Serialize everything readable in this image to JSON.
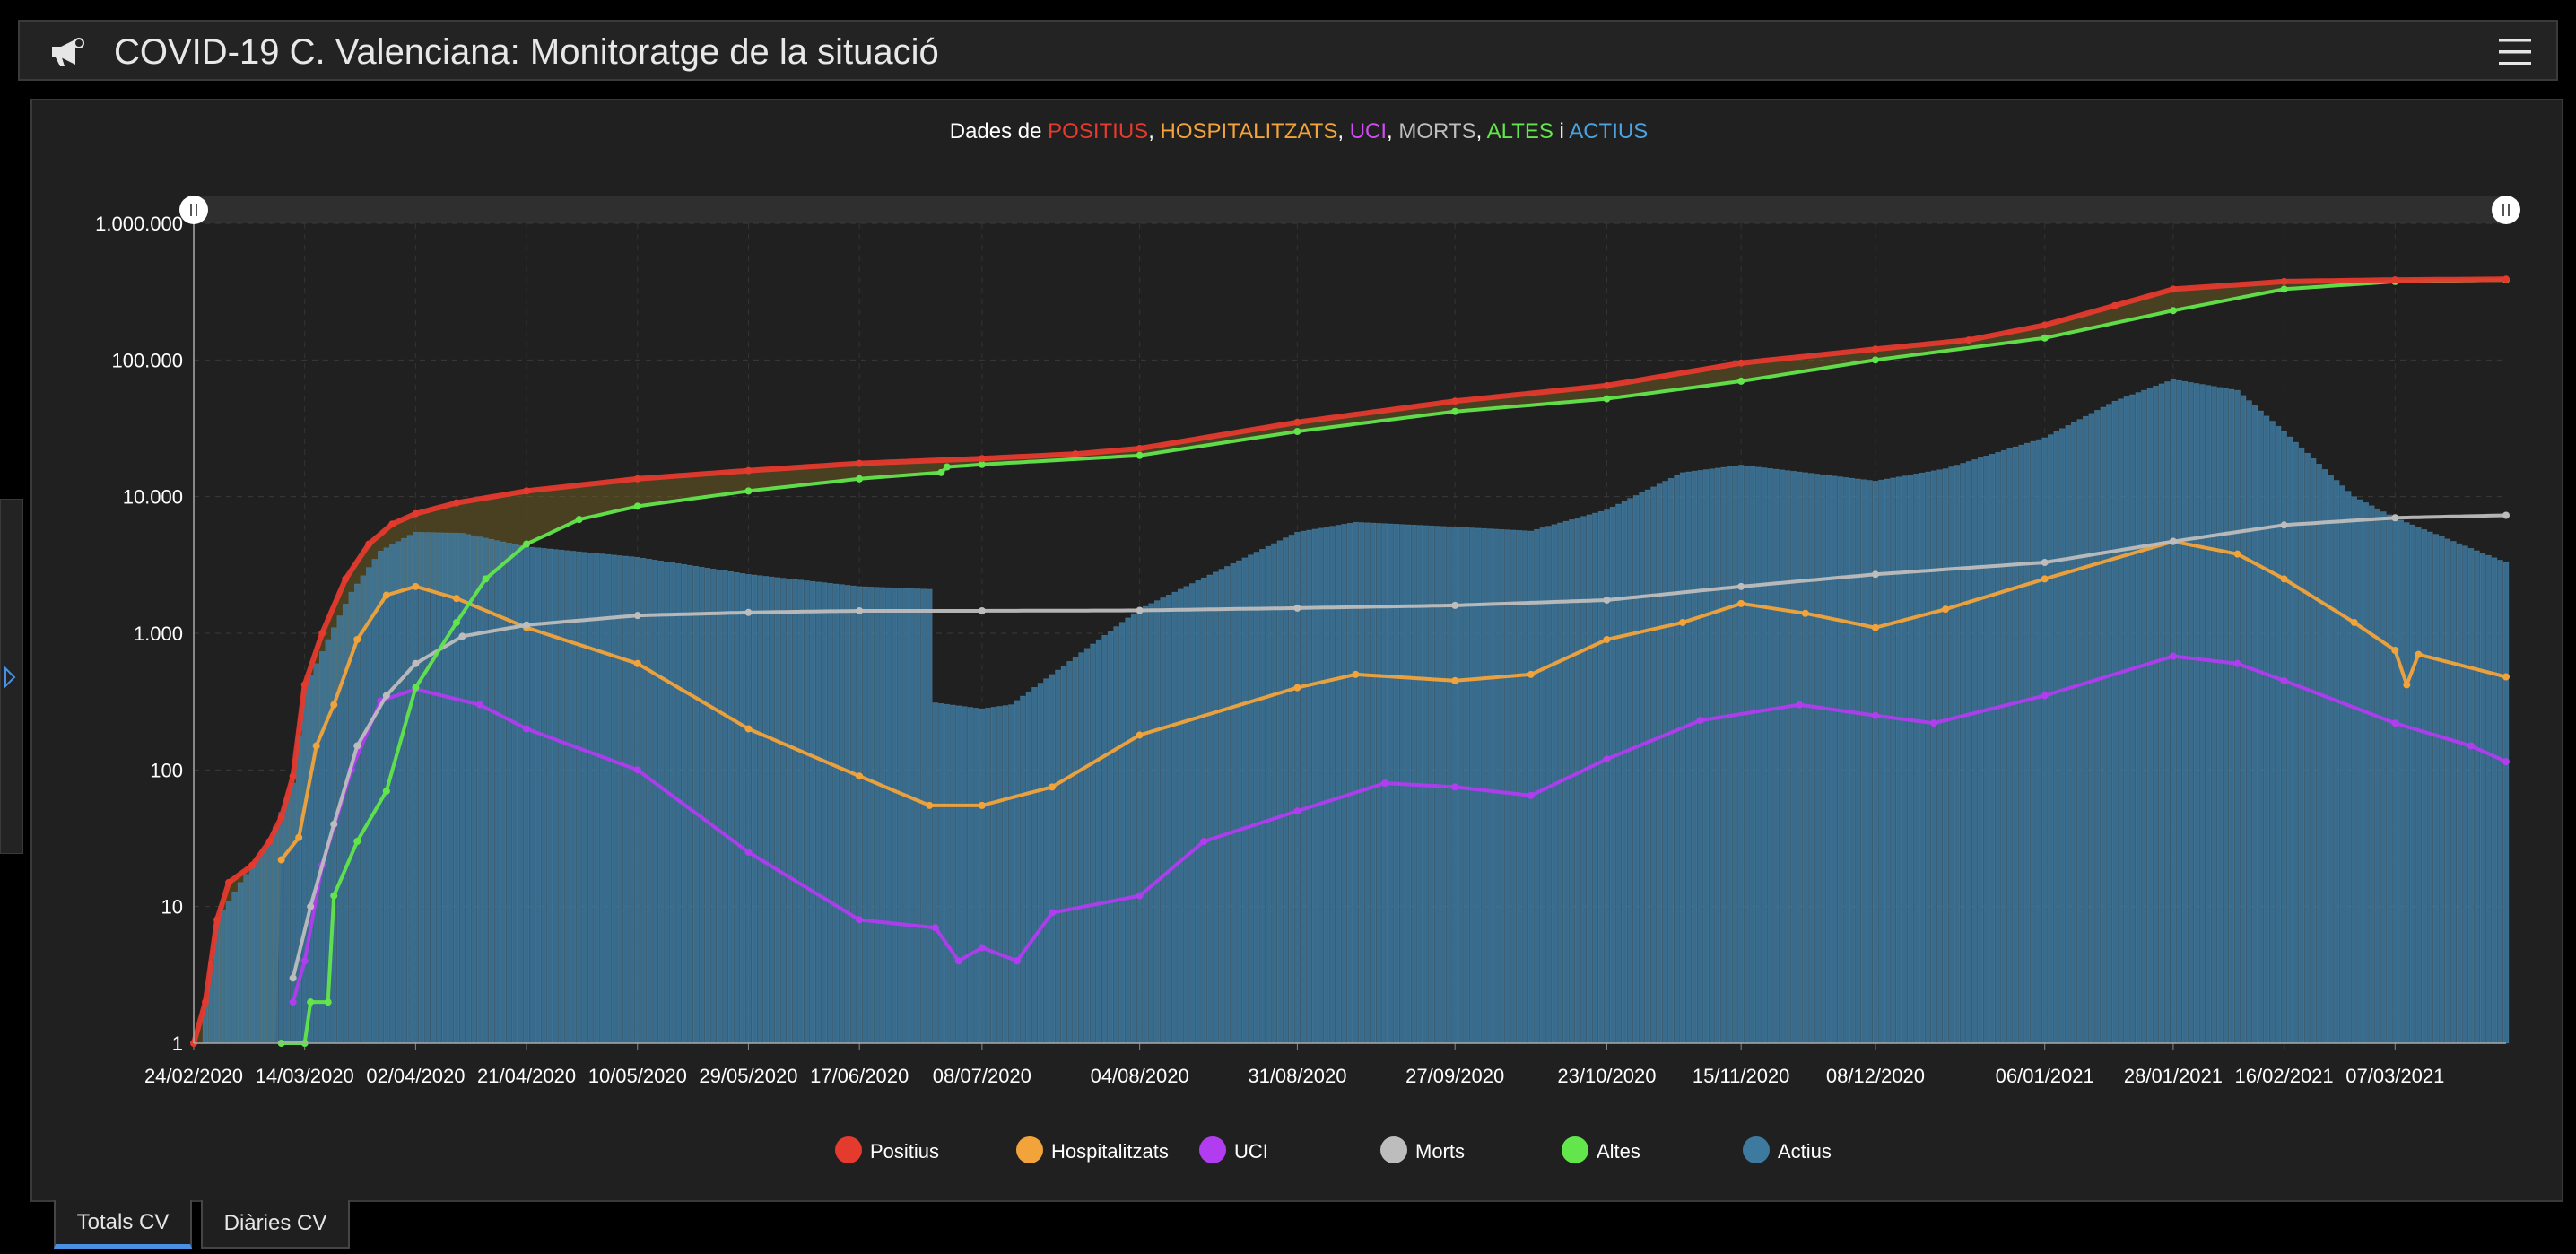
{
  "app": {
    "title": "COVID-19 C. Valenciana: Monitoratge de la situació"
  },
  "tabs": [
    {
      "label": "Totals CV",
      "active": true
    },
    {
      "label": "Diàries CV",
      "active": false
    }
  ],
  "colors": {
    "positius": "#e53a2e",
    "hospitalitzats": "#f2a33a",
    "uci": "#b13cf0",
    "morts": "#bdbdbd",
    "altes": "#62e64b",
    "actius": "#3e7aa0"
  },
  "chart_data": {
    "type": "line",
    "title_parts": [
      {
        "text": "Dades de ",
        "color": "#ffffff"
      },
      {
        "text": "POSITIUS",
        "color": "#e53a2e"
      },
      {
        "text": ", ",
        "color": "#ffffff"
      },
      {
        "text": "HOSPITALITZATS",
        "color": "#f2a33a"
      },
      {
        "text": ", ",
        "color": "#ffffff"
      },
      {
        "text": "UCI",
        "color": "#d04cf2"
      },
      {
        "text": ", ",
        "color": "#ffffff"
      },
      {
        "text": "MORTS",
        "color": "#bdbdbd"
      },
      {
        "text": ", ",
        "color": "#ffffff"
      },
      {
        "text": "ALTES",
        "color": "#62e64b"
      },
      {
        "text": " i ",
        "color": "#ffffff"
      },
      {
        "text": "ACTIUS",
        "color": "#4aa3e0"
      }
    ],
    "y_scale": "log",
    "ylim": [
      1,
      1000000
    ],
    "y_ticks": [
      {
        "value": 1,
        "label": "1"
      },
      {
        "value": 10,
        "label": "10"
      },
      {
        "value": 100,
        "label": "100"
      },
      {
        "value": 1000,
        "label": "1.000"
      },
      {
        "value": 10000,
        "label": "10.000"
      },
      {
        "value": 100000,
        "label": "100.000"
      },
      {
        "value": 1000000,
        "label": "1.000.000"
      }
    ],
    "x_start": "24/02/2020",
    "x_end": "26/03/2021",
    "x_ticks": [
      "24/02/2020",
      "14/03/2020",
      "02/04/2020",
      "21/04/2020",
      "10/05/2020",
      "29/05/2020",
      "17/06/2020",
      "08/07/2020",
      "04/08/2020",
      "31/08/2020",
      "27/09/2020",
      "23/10/2020",
      "15/11/2020",
      "08/12/2020",
      "06/01/2021",
      "28/01/2021",
      "16/02/2021",
      "07/03/2021"
    ],
    "legend_position": "bottom",
    "series": [
      {
        "name": "Positius",
        "key": "positius",
        "style": "line",
        "points": [
          [
            "24/02/2020",
            1
          ],
          [
            "26/02/2020",
            2
          ],
          [
            "28/02/2020",
            8
          ],
          [
            "01/03/2020",
            15
          ],
          [
            "05/03/2020",
            20
          ],
          [
            "08/03/2020",
            30
          ],
          [
            "10/03/2020",
            45
          ],
          [
            "12/03/2020",
            90
          ],
          [
            "14/03/2020",
            420
          ],
          [
            "17/03/2020",
            1000
          ],
          [
            "21/03/2020",
            2500
          ],
          [
            "25/03/2020",
            4500
          ],
          [
            "29/03/2020",
            6300
          ],
          [
            "02/04/2020",
            7500
          ],
          [
            "09/04/2020",
            9000
          ],
          [
            "21/04/2020",
            11000
          ],
          [
            "10/05/2020",
            13500
          ],
          [
            "29/05/2020",
            15500
          ],
          [
            "17/06/2020",
            17500
          ],
          [
            "08/07/2020",
            19000
          ],
          [
            "24/07/2020",
            20500
          ],
          [
            "04/08/2020",
            22500
          ],
          [
            "31/08/2020",
            35000
          ],
          [
            "27/09/2020",
            50000
          ],
          [
            "23/10/2020",
            65000
          ],
          [
            "15/11/2020",
            95000
          ],
          [
            "08/12/2020",
            120000
          ],
          [
            "24/12/2020",
            140000
          ],
          [
            "06/01/2021",
            180000
          ],
          [
            "18/01/2021",
            250000
          ],
          [
            "28/01/2021",
            330000
          ],
          [
            "16/02/2021",
            375000
          ],
          [
            "07/03/2021",
            385000
          ],
          [
            "26/03/2021",
            390000
          ]
        ]
      },
      {
        "name": "Hospitalitzats",
        "key": "hospitalitzats",
        "style": "line",
        "points": [
          [
            "10/03/2020",
            22
          ],
          [
            "13/03/2020",
            32
          ],
          [
            "16/03/2020",
            150
          ],
          [
            "19/03/2020",
            300
          ],
          [
            "23/03/2020",
            900
          ],
          [
            "28/03/2020",
            1900
          ],
          [
            "02/04/2020",
            2200
          ],
          [
            "09/04/2020",
            1800
          ],
          [
            "21/04/2020",
            1100
          ],
          [
            "10/05/2020",
            600
          ],
          [
            "29/05/2020",
            200
          ],
          [
            "17/06/2020",
            90
          ],
          [
            "29/06/2020",
            55
          ],
          [
            "08/07/2020",
            55
          ],
          [
            "20/07/2020",
            75
          ],
          [
            "04/08/2020",
            180
          ],
          [
            "31/08/2020",
            400
          ],
          [
            "10/09/2020",
            500
          ],
          [
            "27/09/2020",
            450
          ],
          [
            "10/10/2020",
            500
          ],
          [
            "23/10/2020",
            900
          ],
          [
            "05/11/2020",
            1200
          ],
          [
            "15/11/2020",
            1650
          ],
          [
            "26/11/2020",
            1400
          ],
          [
            "08/12/2020",
            1100
          ],
          [
            "20/12/2020",
            1500
          ],
          [
            "06/01/2021",
            2500
          ],
          [
            "28/01/2021",
            4700
          ],
          [
            "08/02/2021",
            3800
          ],
          [
            "16/02/2021",
            2500
          ],
          [
            "28/02/2021",
            1200
          ],
          [
            "07/03/2021",
            750
          ],
          [
            "09/03/2021",
            420
          ],
          [
            "11/03/2021",
            700
          ],
          [
            "26/03/2021",
            480
          ]
        ]
      },
      {
        "name": "UCI",
        "key": "uci",
        "style": "line",
        "points": [
          [
            "12/03/2020",
            2
          ],
          [
            "14/03/2020",
            4
          ],
          [
            "17/03/2020",
            20
          ],
          [
            "22/03/2020",
            100
          ],
          [
            "27/03/2020",
            320
          ],
          [
            "02/04/2020",
            390
          ],
          [
            "13/04/2020",
            300
          ],
          [
            "21/04/2020",
            200
          ],
          [
            "10/05/2020",
            100
          ],
          [
            "29/05/2020",
            25
          ],
          [
            "17/06/2020",
            8
          ],
          [
            "30/06/2020",
            7
          ],
          [
            "04/07/2020",
            4
          ],
          [
            "08/07/2020",
            5
          ],
          [
            "14/07/2020",
            4
          ],
          [
            "20/07/2020",
            9
          ],
          [
            "04/08/2020",
            12
          ],
          [
            "15/08/2020",
            30
          ],
          [
            "31/08/2020",
            50
          ],
          [
            "15/09/2020",
            80
          ],
          [
            "27/09/2020",
            75
          ],
          [
            "10/10/2020",
            65
          ],
          [
            "23/10/2020",
            120
          ],
          [
            "08/11/2020",
            230
          ],
          [
            "25/11/2020",
            300
          ],
          [
            "08/12/2020",
            250
          ],
          [
            "18/12/2020",
            220
          ],
          [
            "06/01/2021",
            350
          ],
          [
            "28/01/2021",
            680
          ],
          [
            "08/02/2021",
            600
          ],
          [
            "16/02/2021",
            450
          ],
          [
            "07/03/2021",
            220
          ],
          [
            "20/03/2021",
            150
          ],
          [
            "26/03/2021",
            115
          ]
        ]
      },
      {
        "name": "Morts",
        "key": "morts",
        "style": "line",
        "points": [
          [
            "12/03/2020",
            3
          ],
          [
            "15/03/2020",
            10
          ],
          [
            "19/03/2020",
            40
          ],
          [
            "23/03/2020",
            150
          ],
          [
            "28/03/2020",
            350
          ],
          [
            "02/04/2020",
            600
          ],
          [
            "10/04/2020",
            950
          ],
          [
            "21/04/2020",
            1150
          ],
          [
            "10/05/2020",
            1350
          ],
          [
            "29/05/2020",
            1420
          ],
          [
            "17/06/2020",
            1460
          ],
          [
            "08/07/2020",
            1460
          ],
          [
            "04/08/2020",
            1470
          ],
          [
            "31/08/2020",
            1530
          ],
          [
            "27/09/2020",
            1600
          ],
          [
            "23/10/2020",
            1750
          ],
          [
            "15/11/2020",
            2200
          ],
          [
            "08/12/2020",
            2700
          ],
          [
            "06/01/2021",
            3300
          ],
          [
            "28/01/2021",
            4700
          ],
          [
            "16/02/2021",
            6200
          ],
          [
            "07/03/2021",
            7000
          ],
          [
            "26/03/2021",
            7300
          ]
        ]
      },
      {
        "name": "Altes",
        "key": "altes",
        "style": "line",
        "points": [
          [
            "10/03/2020",
            1
          ],
          [
            "14/03/2020",
            1
          ],
          [
            "15/03/2020",
            2
          ],
          [
            "18/03/2020",
            2
          ],
          [
            "19/03/2020",
            12
          ],
          [
            "23/03/2020",
            30
          ],
          [
            "28/03/2020",
            70
          ],
          [
            "02/04/2020",
            400
          ],
          [
            "09/04/2020",
            1200
          ],
          [
            "14/04/2020",
            2500
          ],
          [
            "21/04/2020",
            4500
          ],
          [
            "30/04/2020",
            6800
          ],
          [
            "10/05/2020",
            8500
          ],
          [
            "29/05/2020",
            11000
          ],
          [
            "17/06/2020",
            13500
          ],
          [
            "01/07/2020",
            15000
          ],
          [
            "02/07/2020",
            16500
          ],
          [
            "08/07/2020",
            17200
          ],
          [
            "04/08/2020",
            20000
          ],
          [
            "31/08/2020",
            30000
          ],
          [
            "27/09/2020",
            42000
          ],
          [
            "23/10/2020",
            52000
          ],
          [
            "15/11/2020",
            70000
          ],
          [
            "08/12/2020",
            100000
          ],
          [
            "06/01/2021",
            145000
          ],
          [
            "28/01/2021",
            230000
          ],
          [
            "16/02/2021",
            330000
          ],
          [
            "07/03/2021",
            375000
          ],
          [
            "26/03/2021",
            385000
          ]
        ]
      },
      {
        "name": "Actius",
        "key": "actius",
        "style": "bar",
        "points": [
          [
            "25/02/2020",
            1
          ],
          [
            "28/02/2020",
            8
          ],
          [
            "03/03/2020",
            15
          ],
          [
            "08/03/2020",
            30
          ],
          [
            "12/03/2020",
            80
          ],
          [
            "14/03/2020",
            400
          ],
          [
            "18/03/2020",
            900
          ],
          [
            "22/03/2020",
            2000
          ],
          [
            "27/03/2020",
            4000
          ],
          [
            "02/04/2020",
            5500
          ],
          [
            "10/04/2020",
            5400
          ],
          [
            "21/04/2020",
            4300
          ],
          [
            "10/05/2020",
            3600
          ],
          [
            "29/05/2020",
            2700
          ],
          [
            "17/06/2020",
            2200
          ],
          [
            "29/06/2020",
            2100
          ],
          [
            "30/06/2020",
            310
          ],
          [
            "08/07/2020",
            280
          ],
          [
            "13/07/2020",
            300
          ],
          [
            "20/07/2020",
            500
          ],
          [
            "04/08/2020",
            1500
          ],
          [
            "31/08/2020",
            5500
          ],
          [
            "10/09/2020",
            6500
          ],
          [
            "27/09/2020",
            6000
          ],
          [
            "10/10/2020",
            5600
          ],
          [
            "23/10/2020",
            8000
          ],
          [
            "05/11/2020",
            15000
          ],
          [
            "15/11/2020",
            17000
          ],
          [
            "26/11/2020",
            15000
          ],
          [
            "08/12/2020",
            13000
          ],
          [
            "20/12/2020",
            16000
          ],
          [
            "06/01/2021",
            27000
          ],
          [
            "18/01/2021",
            50000
          ],
          [
            "28/01/2021",
            72000
          ],
          [
            "08/02/2021",
            60000
          ],
          [
            "16/02/2021",
            30000
          ],
          [
            "28/02/2021",
            10000
          ],
          [
            "07/03/2021",
            7000
          ],
          [
            "26/03/2021",
            3300
          ]
        ]
      }
    ]
  }
}
